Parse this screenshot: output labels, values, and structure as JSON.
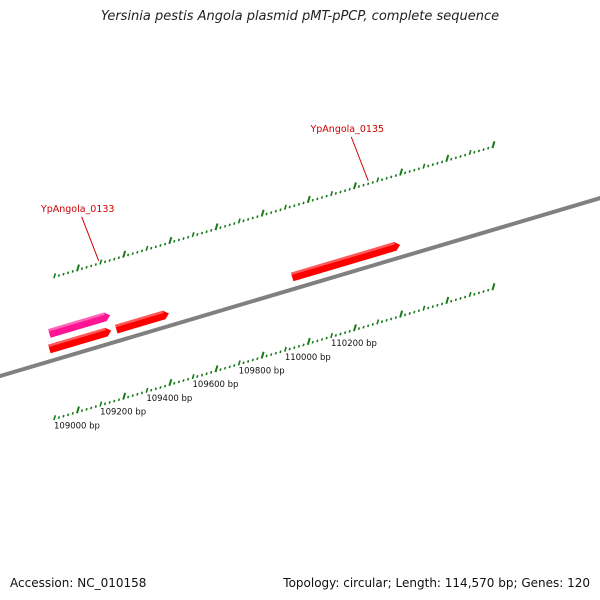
{
  "title": "Yersinia pestis Angola plasmid pMT-pPCP, complete sequence",
  "footer": {
    "accession": "Accession: NC_010158",
    "summary": "Topology: circular; Length: 114,570 bp; Genes: 120"
  },
  "colors": {
    "backbone": "#808080",
    "gene_red": "#ff0000",
    "gene_pink": "#ff1493",
    "tick": "#1a7a1a",
    "label": "#cc0000"
  },
  "chart_data": {
    "type": "genome-map",
    "ruler_start_bp": 108900,
    "ruler_major_step_bp": 200,
    "ruler_minor_step_bp": 20,
    "ruler_labels": [
      {
        "bp": 109000,
        "text": "109000 bp"
      },
      {
        "bp": 109200,
        "text": "109200 bp"
      },
      {
        "bp": 109400,
        "text": "109400 bp"
      },
      {
        "bp": 109600,
        "text": "109600 bp"
      },
      {
        "bp": 109800,
        "text": "109800 bp"
      },
      {
        "bp": 110000,
        "text": "110000 bp"
      },
      {
        "bp": 110200,
        "text": "110200 bp"
      }
    ],
    "gene_labels": [
      {
        "bp": 109094,
        "text": "YpAngola_0133"
      },
      {
        "bp": 110262,
        "text": "YpAngola_0135"
      }
    ],
    "genes": [
      {
        "start": 108880,
        "end": 109155,
        "strand": "+",
        "track": "outer",
        "color": "pink"
      },
      {
        "start": 108880,
        "end": 109160,
        "strand": "+",
        "track": "inner",
        "color": "red"
      },
      {
        "start": 109170,
        "end": 109408,
        "strand": "+",
        "track": "inner",
        "color": "red"
      },
      {
        "start": 109932,
        "end": 110420,
        "strand": "+",
        "track": "inner",
        "color": "red"
      }
    ]
  }
}
